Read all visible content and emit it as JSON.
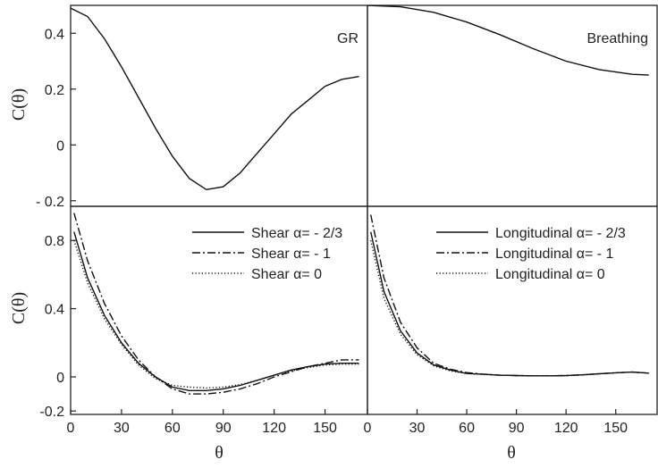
{
  "chart_data": [
    {
      "type": "line",
      "panel_label": "GR",
      "xlabel": "",
      "ylabel": "C(θ)",
      "xlim": [
        0,
        175
      ],
      "ylim": [
        -0.22,
        0.5
      ],
      "yticks": [
        {
          "v": 0.4,
          "label": "0.4"
        },
        {
          "v": 0.2,
          "label": "0.2"
        },
        {
          "v": 0,
          "label": "0"
        },
        {
          "v": -0.2,
          "label": "- 0.2"
        }
      ],
      "xticks": [],
      "series": [
        {
          "style": "solid",
          "x": [
            0,
            10,
            20,
            30,
            40,
            50,
            60,
            70,
            80,
            90,
            100,
            110,
            120,
            130,
            140,
            150,
            160,
            170
          ],
          "y": [
            0.49,
            0.46,
            0.38,
            0.28,
            0.17,
            0.06,
            -0.04,
            -0.12,
            -0.16,
            -0.15,
            -0.1,
            -0.03,
            0.04,
            0.11,
            0.16,
            0.21,
            0.235,
            0.245
          ]
        }
      ]
    },
    {
      "type": "line",
      "panel_label": "Breathing",
      "xlabel": "",
      "ylabel": "",
      "xlim": [
        0,
        175
      ],
      "ylim": [
        -0.22,
        0.5
      ],
      "yticks": [],
      "xticks": [],
      "series": [
        {
          "style": "solid",
          "x": [
            0,
            20,
            40,
            60,
            80,
            100,
            120,
            140,
            160,
            170
          ],
          "y": [
            0.5,
            0.495,
            0.475,
            0.44,
            0.395,
            0.345,
            0.3,
            0.27,
            0.253,
            0.25
          ]
        }
      ]
    },
    {
      "type": "line",
      "panel_label": "",
      "xlabel": "θ",
      "ylabel": "C(θ)",
      "xlim": [
        0,
        175
      ],
      "ylim": [
        -0.22,
        1.0
      ],
      "yticks": [
        {
          "v": 0.8,
          "label": "0.8"
        },
        {
          "v": 0.4,
          "label": "0.4"
        },
        {
          "v": 0,
          "label": "0"
        },
        {
          "v": -0.2,
          "label": "-0.2"
        }
      ],
      "xticks": [
        {
          "v": 0,
          "label": "0"
        },
        {
          "v": 30,
          "label": "30"
        },
        {
          "v": 60,
          "label": "60"
        },
        {
          "v": 90,
          "label": "90"
        },
        {
          "v": 120,
          "label": "120"
        },
        {
          "v": 150,
          "label": "150"
        }
      ],
      "legend": [
        "Shear α= - 2/3",
        "Shear α= - 1",
        "Shear α= 0"
      ],
      "series": [
        {
          "name": "Shear α= - 2/3",
          "style": "solid",
          "x": [
            2,
            10,
            20,
            30,
            40,
            50,
            60,
            70,
            80,
            90,
            100,
            110,
            120,
            130,
            140,
            150,
            160,
            170
          ],
          "y": [
            0.85,
            0.58,
            0.36,
            0.2,
            0.08,
            0.0,
            -0.06,
            -0.08,
            -0.08,
            -0.07,
            -0.05,
            -0.02,
            0.01,
            0.04,
            0.06,
            0.075,
            0.08,
            0.08
          ]
        },
        {
          "name": "Shear α= - 1",
          "style": "dashdot",
          "x": [
            2,
            10,
            20,
            30,
            40,
            50,
            60,
            70,
            80,
            90,
            100,
            110,
            120,
            130,
            140,
            150,
            160,
            170
          ],
          "y": [
            0.96,
            0.68,
            0.43,
            0.24,
            0.1,
            0.0,
            -0.07,
            -0.1,
            -0.1,
            -0.09,
            -0.07,
            -0.04,
            0.0,
            0.03,
            0.06,
            0.08,
            0.1,
            0.1
          ]
        },
        {
          "name": "Shear α= 0",
          "style": "dotted",
          "x": [
            2,
            10,
            20,
            30,
            40,
            50,
            60,
            70,
            80,
            90,
            100,
            110,
            120,
            130,
            140,
            150,
            160,
            170
          ],
          "y": [
            0.8,
            0.55,
            0.34,
            0.19,
            0.07,
            -0.01,
            -0.05,
            -0.06,
            -0.065,
            -0.06,
            -0.045,
            -0.02,
            0.01,
            0.035,
            0.055,
            0.07,
            0.075,
            0.075
          ]
        }
      ]
    },
    {
      "type": "line",
      "panel_label": "",
      "xlabel": "θ",
      "ylabel": "",
      "xlim": [
        0,
        175
      ],
      "ylim": [
        -0.22,
        1.0
      ],
      "yticks": [],
      "xticks": [
        {
          "v": 0,
          "label": "0"
        },
        {
          "v": 30,
          "label": "30"
        },
        {
          "v": 60,
          "label": "60"
        },
        {
          "v": 90,
          "label": "90"
        },
        {
          "v": 120,
          "label": "120"
        },
        {
          "v": 150,
          "label": "150"
        }
      ],
      "legend": [
        "Longitudinal α= - 2/3",
        "Longitudinal α= - 1",
        "Longitudinal α= 0"
      ],
      "series": [
        {
          "name": "Longitudinal α= - 2/3",
          "style": "solid",
          "x": [
            2,
            10,
            20,
            30,
            40,
            50,
            60,
            70,
            80,
            90,
            100,
            110,
            120,
            130,
            140,
            150,
            160,
            170
          ],
          "y": [
            0.85,
            0.5,
            0.27,
            0.14,
            0.07,
            0.04,
            0.02,
            0.015,
            0.01,
            0.008,
            0.006,
            0.006,
            0.008,
            0.012,
            0.018,
            0.024,
            0.028,
            0.022
          ]
        },
        {
          "name": "Longitudinal α= - 1",
          "style": "dashdot",
          "x": [
            2,
            10,
            20,
            30,
            40,
            50,
            60,
            70,
            80,
            90,
            100,
            110,
            120,
            130,
            140,
            150,
            160,
            170
          ],
          "y": [
            0.95,
            0.58,
            0.32,
            0.17,
            0.08,
            0.045,
            0.025,
            0.016,
            0.01,
            0.008,
            0.006,
            0.006,
            0.008,
            0.012,
            0.018,
            0.024,
            0.028,
            0.022
          ]
        },
        {
          "name": "Longitudinal α= 0",
          "style": "dotted",
          "x": [
            2,
            10,
            20,
            30,
            40,
            50,
            60,
            70,
            80,
            90,
            100,
            110,
            120,
            130,
            140,
            150,
            160,
            170
          ],
          "y": [
            0.8,
            0.46,
            0.25,
            0.13,
            0.065,
            0.035,
            0.02,
            0.015,
            0.01,
            0.008,
            0.006,
            0.006,
            0.008,
            0.012,
            0.018,
            0.024,
            0.028,
            0.022
          ]
        }
      ]
    }
  ]
}
